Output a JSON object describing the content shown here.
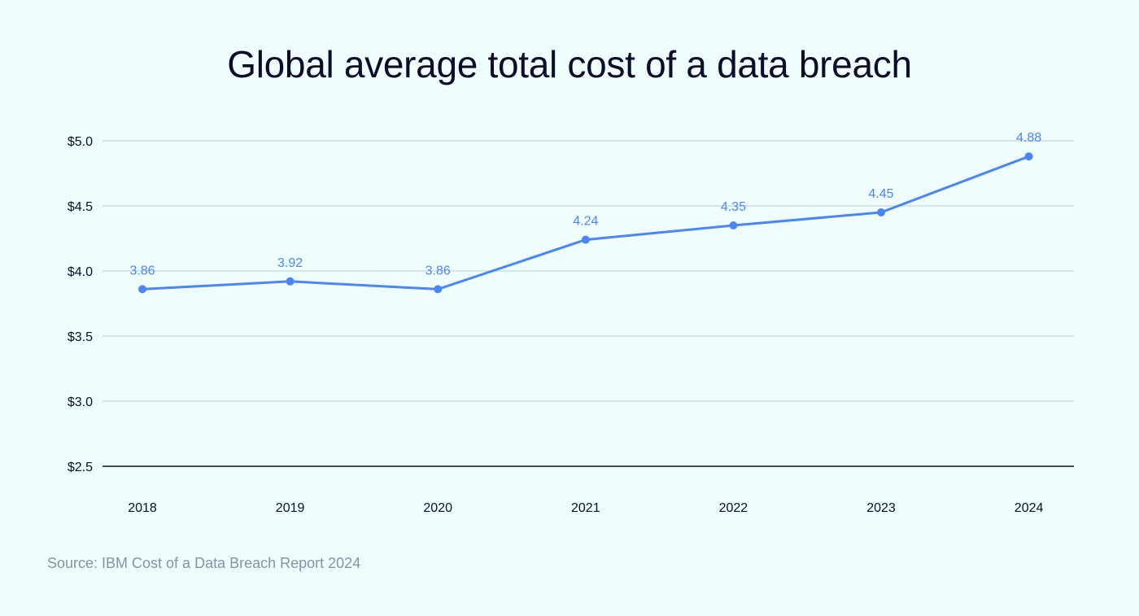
{
  "chart_data": {
    "type": "line",
    "title": "Global average total cost of a data breach",
    "categories": [
      "2018",
      "2019",
      "2020",
      "2021",
      "2022",
      "2023",
      "2024"
    ],
    "values": [
      3.86,
      3.92,
      3.86,
      4.24,
      4.35,
      4.45,
      4.88
    ],
    "data_labels": [
      "3.86",
      "3.92",
      "3.86",
      "4.24",
      "4.35",
      "4.45",
      "4.88"
    ],
    "ylim": [
      2.5,
      5.0
    ],
    "yticks": [
      2.5,
      3.0,
      3.5,
      4.0,
      4.5,
      5.0
    ],
    "ytick_labels": [
      "$2.5",
      "$3.0",
      "$3.5",
      "$4.0",
      "$4.5",
      "$5.0"
    ],
    "xlabel": "",
    "ylabel": "",
    "grid": true,
    "colors": {
      "line": "#4a86f7",
      "grid": "#d6e4e6",
      "axis": "#454b5e",
      "text": "#0b0c2b"
    }
  },
  "source": "Source: IBM Cost of a Data Breach Report 2024"
}
